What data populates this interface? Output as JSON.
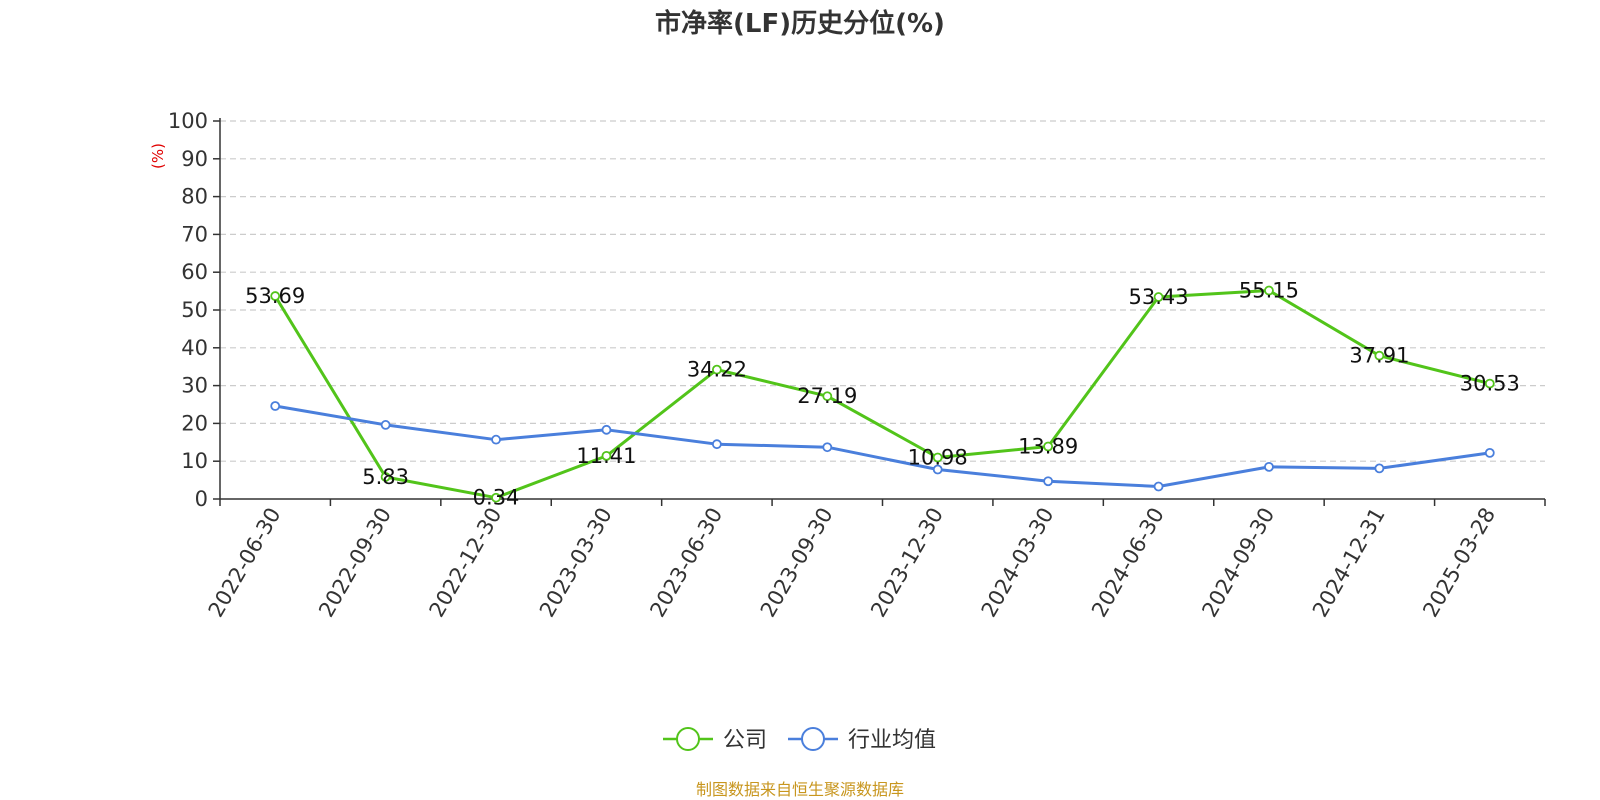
{
  "colors": {
    "company": "#52c41a",
    "industry": "#4a7fdc",
    "source_text": "#c8961e",
    "unit_text": "#e00000"
  },
  "source": "制图数据来自恒生聚源数据库",
  "chart_data": {
    "type": "line",
    "title": "市净率(LF)历史分位(%)",
    "unit_label": "(%)",
    "xlabel": "",
    "ylabel": "",
    "ylim": [
      0,
      100
    ],
    "yticks": [
      0,
      10,
      20,
      30,
      40,
      50,
      60,
      70,
      80,
      90,
      100
    ],
    "grid": true,
    "legend_position": "bottom",
    "categories": [
      "2022-06-30",
      "2022-09-30",
      "2022-12-30",
      "2023-03-30",
      "2023-06-30",
      "2023-09-30",
      "2023-12-30",
      "2024-03-30",
      "2024-06-30",
      "2024-09-30",
      "2024-12-31",
      "2025-03-28"
    ],
    "series": [
      {
        "name": "公司",
        "values": [
          53.69,
          5.83,
          0.34,
          11.41,
          34.22,
          27.19,
          10.98,
          13.89,
          53.43,
          55.15,
          37.91,
          30.53
        ],
        "labels": [
          "53.69",
          "5.83",
          "0.34",
          "11.41",
          "34.22",
          "27.19",
          "10.98",
          "13.89",
          "53.43",
          "55.15",
          "37.91",
          "30.53"
        ]
      },
      {
        "name": "行业均值",
        "values": [
          24.6,
          19.6,
          15.7,
          18.3,
          14.5,
          13.7,
          7.8,
          4.7,
          3.3,
          8.5,
          8.1,
          12.2
        ]
      }
    ]
  }
}
